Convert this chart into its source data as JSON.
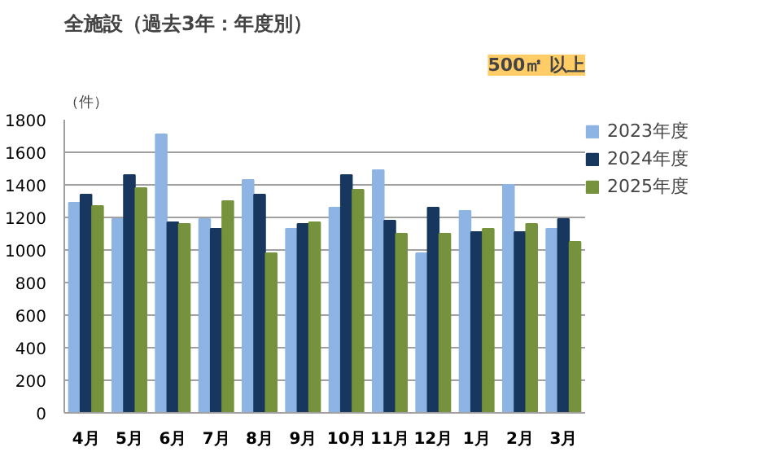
{
  "chart_data": {
    "type": "bar",
    "title": "全施設（過去3年：年度別）",
    "subtitle": "500㎡ 以上",
    "ylabel": "（件）",
    "categories": [
      "4月",
      "5月",
      "6月",
      "7月",
      "8月",
      "9月",
      "10月",
      "11月",
      "12月",
      "1月",
      "2月",
      "3月"
    ],
    "series": [
      {
        "name": "2023年度",
        "color": "#8db4e2",
        "values": [
          1290,
          1190,
          1710,
          1190,
          1430,
          1130,
          1260,
          1490,
          980,
          1240,
          1400,
          1130
        ]
      },
      {
        "name": "2024年度",
        "color": "#17375e",
        "values": [
          1340,
          1460,
          1170,
          1130,
          1340,
          1160,
          1460,
          1180,
          1260,
          1110,
          1110,
          1190
        ]
      },
      {
        "name": "2025年度",
        "color": "#76923c",
        "values": [
          1270,
          1380,
          1160,
          1300,
          980,
          1170,
          1370,
          1100,
          1100,
          1130,
          1160,
          1050
        ]
      }
    ],
    "ylim": [
      0,
      1800
    ],
    "yticks": [
      0,
      200,
      400,
      600,
      800,
      1000,
      1200,
      1400,
      1600,
      1800
    ],
    "grid": "y",
    "legend": "top right"
  }
}
